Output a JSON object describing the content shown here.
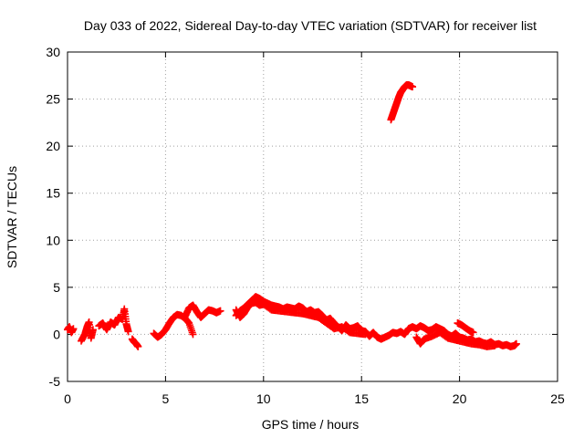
{
  "chart_data": {
    "type": "scatter",
    "title": "Day 033 of 2022, Sidereal Day-to-day VTEC variation (SDTVAR) for receiver list",
    "xlabel": "GPS time / hours",
    "ylabel": "SDTVAR / TECUs",
    "xlim": [
      0,
      25
    ],
    "ylim": [
      -5,
      30
    ],
    "x_ticks": [
      0,
      5,
      10,
      15,
      20,
      25
    ],
    "y_ticks": [
      -5,
      0,
      5,
      10,
      15,
      20,
      25,
      30
    ],
    "grid": true,
    "marker": "+",
    "series": [
      {
        "name": "SDTVAR",
        "color": "#ff0000",
        "segments": [
          [
            [
              0.0,
              0.5
            ],
            [
              0.1,
              0.8
            ],
            [
              0.2,
              0.2
            ],
            [
              0.3,
              0.6
            ]
          ],
          [
            [
              0.7,
              -0.7
            ],
            [
              0.9,
              0.1
            ],
            [
              1.0,
              0.8
            ],
            [
              1.1,
              1.3
            ],
            [
              1.2,
              -0.4
            ],
            [
              1.3,
              0.5
            ]
          ],
          [
            [
              1.6,
              0.9
            ],
            [
              1.8,
              1.2
            ],
            [
              2.0,
              0.5
            ],
            [
              2.2,
              1.3
            ],
            [
              2.4,
              1.0
            ],
            [
              2.6,
              1.8
            ],
            [
              2.8,
              1.6
            ],
            [
              2.9,
              2.7
            ],
            [
              3.0,
              1.1
            ],
            [
              3.1,
              0.3
            ]
          ],
          [
            [
              3.3,
              -0.5
            ],
            [
              3.4,
              -0.8
            ],
            [
              3.5,
              -1.0
            ],
            [
              3.6,
              -1.3
            ]
          ],
          [
            [
              4.4,
              0.1
            ],
            [
              4.6,
              -0.3
            ],
            [
              4.8,
              0.0
            ],
            [
              5.0,
              0.5
            ],
            [
              5.2,
              1.2
            ],
            [
              5.4,
              1.8
            ],
            [
              5.6,
              2.1
            ],
            [
              5.8,
              2.0
            ],
            [
              6.0,
              1.7
            ],
            [
              6.2,
              1.2
            ],
            [
              6.4,
              0.0
            ]
          ],
          [
            [
              6.0,
              1.9
            ],
            [
              6.2,
              2.8
            ],
            [
              6.4,
              3.1
            ],
            [
              6.6,
              2.4
            ],
            [
              6.8,
              1.8
            ],
            [
              7.0,
              2.2
            ],
            [
              7.2,
              2.6
            ],
            [
              7.4,
              2.5
            ],
            [
              7.6,
              2.3
            ],
            [
              7.8,
              2.5
            ]
          ],
          [
            [
              8.6,
              2.0
            ],
            [
              8.8,
              2.5
            ],
            [
              9.0,
              2.8
            ],
            [
              9.2,
              3.2
            ],
            [
              9.4,
              3.6
            ],
            [
              9.6,
              4.0
            ],
            [
              9.8,
              3.8
            ],
            [
              10.0,
              3.5
            ],
            [
              10.2,
              3.3
            ],
            [
              10.4,
              3.1
            ],
            [
              10.6,
              3.0
            ],
            [
              10.8,
              2.9
            ],
            [
              11.0,
              2.7
            ],
            [
              11.2,
              2.9
            ],
            [
              11.4,
              2.8
            ],
            [
              11.6,
              2.7
            ],
            [
              11.8,
              3.0
            ],
            [
              12.0,
              2.8
            ],
            [
              12.2,
              2.4
            ],
            [
              12.4,
              2.6
            ],
            [
              12.6,
              2.3
            ],
            [
              12.8,
              2.4
            ],
            [
              13.0,
              2.0
            ],
            [
              13.2,
              1.5
            ],
            [
              13.4,
              1.7
            ],
            [
              13.6,
              1.2
            ],
            [
              13.8,
              0.8
            ],
            [
              14.0,
              0.4
            ],
            [
              14.2,
              1.0
            ],
            [
              14.4,
              0.6
            ],
            [
              14.6,
              0.7
            ],
            [
              14.8,
              0.9
            ],
            [
              15.0,
              0.4
            ],
            [
              15.2,
              0.3
            ],
            [
              15.4,
              -0.2
            ],
            [
              15.6,
              0.2
            ],
            [
              15.8,
              -0.3
            ],
            [
              16.0,
              -0.5
            ],
            [
              16.2,
              -0.3
            ],
            [
              16.4,
              -0.1
            ],
            [
              16.6,
              0.2
            ],
            [
              16.8,
              0.1
            ],
            [
              17.0,
              0.3
            ],
            [
              17.2,
              0.0
            ],
            [
              17.4,
              0.6
            ],
            [
              17.6,
              0.8
            ],
            [
              17.8,
              0.6
            ],
            [
              18.0,
              0.9
            ],
            [
              18.2,
              0.7
            ],
            [
              18.4,
              0.4
            ],
            [
              18.6,
              0.5
            ],
            [
              18.8,
              0.8
            ],
            [
              19.0,
              0.6
            ],
            [
              19.2,
              0.4
            ],
            [
              19.4,
              0.0
            ],
            [
              19.6,
              -0.2
            ],
            [
              19.8,
              0.1
            ],
            [
              20.0,
              -0.3
            ],
            [
              20.2,
              -0.4
            ],
            [
              20.4,
              -0.6
            ],
            [
              20.6,
              -0.5
            ],
            [
              20.8,
              -0.8
            ],
            [
              21.0,
              -0.7
            ],
            [
              21.2,
              -0.9
            ],
            [
              21.4,
              -1.0
            ],
            [
              21.6,
              -0.8
            ],
            [
              21.8,
              -1.1
            ],
            [
              22.0,
              -1.0
            ],
            [
              22.2,
              -1.2
            ],
            [
              22.4,
              -1.1
            ],
            [
              22.6,
              -1.3
            ],
            [
              22.8,
              -1.2
            ],
            [
              22.9,
              -1.0
            ]
          ],
          [
            [
              8.6,
              2.6
            ],
            [
              8.8,
              1.8
            ],
            [
              9.0,
              2.2
            ],
            [
              9.2,
              2.9
            ],
            [
              9.4,
              3.3
            ],
            [
              9.6,
              3.4
            ],
            [
              9.8,
              3.1
            ],
            [
              10.0,
              3.2
            ],
            [
              10.4,
              2.6
            ],
            [
              10.8,
              2.5
            ],
            [
              11.2,
              2.4
            ],
            [
              11.6,
              2.3
            ],
            [
              12.0,
              2.2
            ],
            [
              12.4,
              2.0
            ],
            [
              12.8,
              1.8
            ],
            [
              13.2,
              1.2
            ],
            [
              13.6,
              0.6
            ],
            [
              14.0,
              0.8
            ],
            [
              14.4,
              0.2
            ],
            [
              14.8,
              0.1
            ],
            [
              15.2,
              0.0
            ]
          ],
          [
            [
              17.8,
              -0.3
            ],
            [
              18.0,
              -1.0
            ],
            [
              18.2,
              -0.5
            ],
            [
              18.6,
              -0.2
            ],
            [
              19.0,
              0.2
            ],
            [
              19.4,
              -0.4
            ],
            [
              19.8,
              -0.6
            ],
            [
              20.2,
              -0.8
            ],
            [
              20.6,
              -1.0
            ],
            [
              21.0,
              -1.1
            ],
            [
              21.4,
              -1.3
            ],
            [
              21.8,
              -1.2
            ]
          ],
          [
            [
              19.9,
              1.2
            ],
            [
              20.1,
              1.0
            ],
            [
              20.3,
              0.7
            ],
            [
              20.5,
              0.4
            ],
            [
              20.7,
              0.2
            ]
          ],
          [
            [
              16.5,
              22.8
            ],
            [
              16.6,
              23.4
            ],
            [
              16.7,
              24.0
            ],
            [
              16.8,
              24.6
            ],
            [
              16.9,
              25.2
            ],
            [
              17.0,
              25.7
            ],
            [
              17.1,
              26.0
            ],
            [
              17.2,
              26.3
            ],
            [
              17.3,
              26.5
            ],
            [
              17.4,
              26.5
            ],
            [
              17.5,
              26.4
            ],
            [
              17.6,
              26.3
            ]
          ]
        ]
      }
    ]
  }
}
